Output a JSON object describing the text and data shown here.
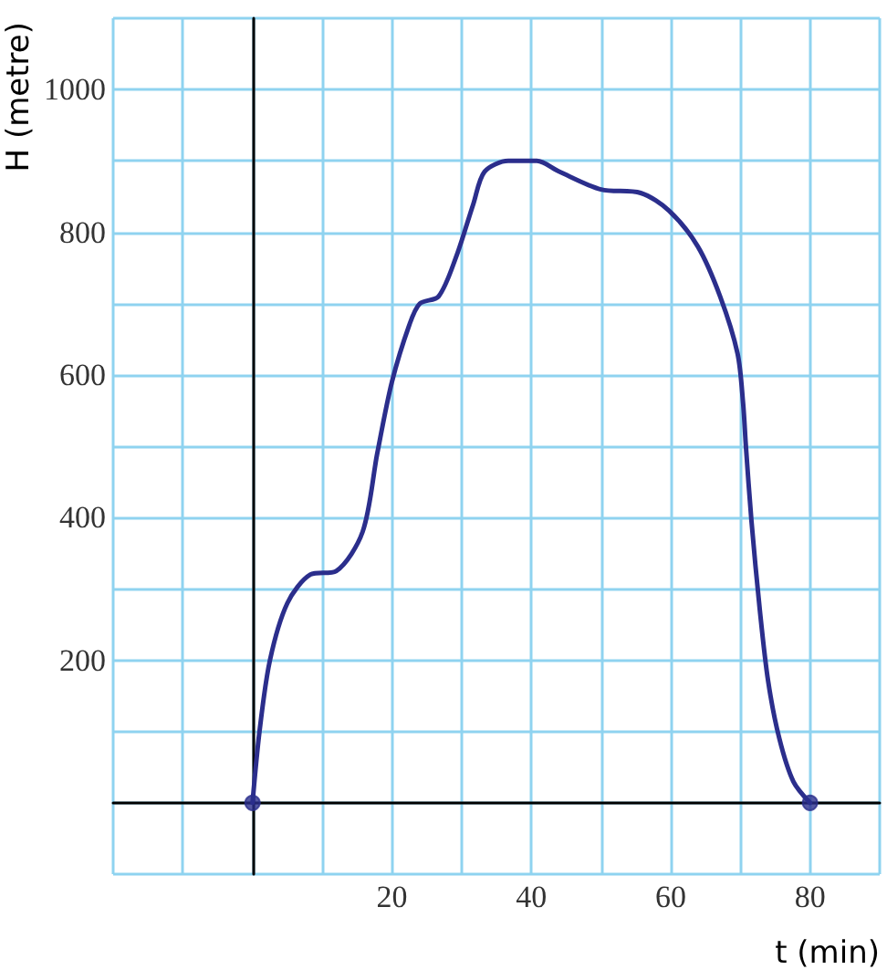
{
  "chart_data": {
    "type": "line",
    "xlabel": "t (min)",
    "ylabel": "H (metre)",
    "xlim": [
      -20,
      90
    ],
    "ylim": [
      -100,
      1100
    ],
    "xticks": [
      {
        "value": -20,
        "label": null
      },
      {
        "value": -10,
        "label": null
      },
      {
        "value": 0,
        "label": null
      },
      {
        "value": 10,
        "label": null
      },
      20,
      {
        "value": 30,
        "label": null
      },
      40,
      {
        "value": 50,
        "label": null
      },
      60,
      {
        "value": 70,
        "label": null
      },
      80,
      {
        "value": 90,
        "label": null
      }
    ],
    "yticks": [
      {
        "value": -100,
        "label": null
      },
      {
        "value": 0,
        "label": null
      },
      {
        "value": 100,
        "label": null
      },
      200,
      {
        "value": 300,
        "label": null
      },
      400,
      {
        "value": 500,
        "label": null
      },
      600,
      {
        "value": 700,
        "label": null
      },
      800,
      {
        "value": 900,
        "label": null
      },
      1000,
      {
        "value": 1100,
        "label": null
      }
    ],
    "grid": true,
    "marker": "none",
    "line_style": "solid",
    "series": [
      {
        "color": "#2b2e8c",
        "x": [
          0,
          1,
          2.5,
          5,
          8.3,
          12,
          15.8,
          17.9,
          20,
          22.5,
          24,
          26.7,
          29.2,
          31.7,
          33.3,
          36.7,
          40.8,
          44,
          50,
          55.7,
          59.8,
          63.9,
          67.1,
          69.6,
          70.4,
          70.8,
          71.6,
          72.8,
          74,
          75.6,
          77.6,
          80
        ],
        "values": [
          0,
          100,
          200,
          280,
          320,
          325,
          380,
          490,
          590,
          670,
          700,
          710,
          765,
          840,
          885,
          900,
          900,
          885,
          860,
          855,
          830,
          780,
          710,
          630,
          560,
          500,
          395,
          270,
          170,
          90,
          30,
          0
        ]
      },
      {
        "type": "scatter",
        "color": "#2b2e8c",
        "marker": "circle",
        "x": [
          0,
          80
        ],
        "values": [
          0,
          0
        ]
      }
    ]
  }
}
